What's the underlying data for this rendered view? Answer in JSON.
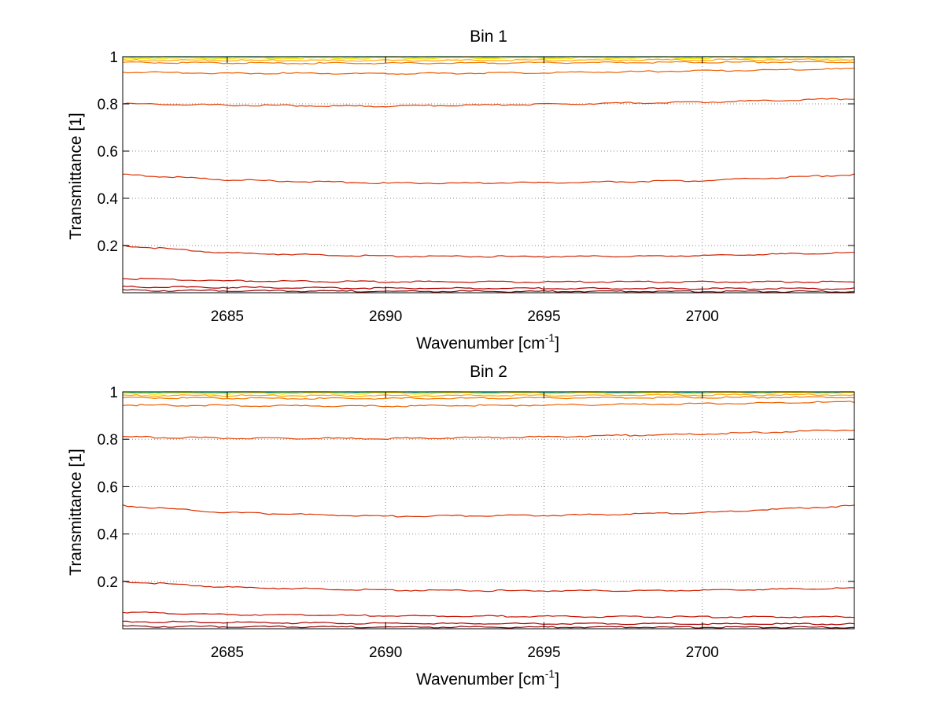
{
  "chart_data": [
    {
      "type": "line",
      "title": "Bin 1",
      "xlabel": "Wavenumber [cm",
      "xlabel_sup": "-1",
      "xlabel_suffix": "]",
      "ylabel": "Transmittance [1]",
      "xlim": [
        2681.7,
        2704.8
      ],
      "ylim": [
        0,
        1
      ],
      "xticks": [
        2685,
        2690,
        2695,
        2700
      ],
      "xtick_labels": [
        "2685",
        "2690",
        "2695",
        "2700"
      ],
      "yticks": [
        0.2,
        0.4,
        0.6,
        0.8,
        1
      ],
      "ytick_labels": [
        "0.2",
        "0.4",
        "0.6",
        "0.8",
        "1"
      ],
      "grid": true,
      "series": [
        {
          "name": "s1",
          "color": "#00c8ff",
          "x": [
            2681.7,
            2688,
            2695,
            2704.8
          ],
          "y": [
            1.0,
            1.0,
            1.0,
            1.0
          ]
        },
        {
          "name": "s2",
          "color": "#80ff80",
          "x": [
            2681.7,
            2688,
            2695,
            2704.8
          ],
          "y": [
            0.997,
            0.997,
            0.997,
            0.997
          ]
        },
        {
          "name": "s3",
          "color": "#ffe000",
          "x": [
            2681.7,
            2688,
            2695,
            2704.8
          ],
          "y": [
            0.993,
            0.993,
            0.994,
            0.995
          ]
        },
        {
          "name": "s4",
          "color": "#ffa500",
          "x": [
            2681.7,
            2688,
            2695,
            2704.8
          ],
          "y": [
            0.985,
            0.984,
            0.985,
            0.988
          ]
        },
        {
          "name": "s5",
          "color": "#f07800",
          "x": [
            2681.7,
            2688,
            2695,
            2704.8
          ],
          "y": [
            0.975,
            0.972,
            0.974,
            0.978
          ]
        },
        {
          "name": "s6",
          "color": "#ee6000",
          "x": [
            2681.7,
            2685,
            2690,
            2695,
            2700,
            2704.8
          ],
          "y": [
            0.935,
            0.93,
            0.928,
            0.932,
            0.94,
            0.948
          ]
        },
        {
          "name": "s7",
          "color": "#e54000",
          "x": [
            2681.7,
            2685,
            2690,
            2695,
            2700,
            2704.8
          ],
          "y": [
            0.8,
            0.795,
            0.79,
            0.798,
            0.808,
            0.822
          ]
        },
        {
          "name": "s8",
          "color": "#dd3000",
          "x": [
            2681.7,
            2685,
            2690,
            2695,
            2700,
            2704.8
          ],
          "y": [
            0.5,
            0.478,
            0.464,
            0.466,
            0.475,
            0.5
          ]
        },
        {
          "name": "s9",
          "color": "#d02000",
          "x": [
            2681.7,
            2685,
            2690,
            2695,
            2700,
            2704.8
          ],
          "y": [
            0.2,
            0.168,
            0.155,
            0.153,
            0.157,
            0.17
          ]
        },
        {
          "name": "s10",
          "color": "#c81000",
          "x": [
            2681.7,
            2685,
            2690,
            2695,
            2700,
            2704.8
          ],
          "y": [
            0.06,
            0.05,
            0.047,
            0.046,
            0.046,
            0.046
          ]
        },
        {
          "name": "s11",
          "color": "#b00000",
          "x": [
            2681.7,
            2690,
            2704.8
          ],
          "y": [
            0.025,
            0.019,
            0.017
          ]
        },
        {
          "name": "s12",
          "color": "#900000",
          "x": [
            2681.7,
            2690,
            2704.8
          ],
          "y": [
            0.01,
            0.006,
            0.005
          ]
        }
      ]
    },
    {
      "type": "line",
      "title": "Bin 2",
      "xlabel": "Wavenumber [cm",
      "xlabel_sup": "-1",
      "xlabel_suffix": "]",
      "ylabel": "Transmittance [1]",
      "xlim": [
        2681.7,
        2704.8
      ],
      "ylim": [
        0,
        1
      ],
      "xticks": [
        2685,
        2690,
        2695,
        2700
      ],
      "xtick_labels": [
        "2685",
        "2690",
        "2695",
        "2700"
      ],
      "yticks": [
        0.2,
        0.4,
        0.6,
        0.8,
        1
      ],
      "ytick_labels": [
        "0.2",
        "0.4",
        "0.6",
        "0.8",
        "1"
      ],
      "grid": true,
      "series": [
        {
          "name": "s1",
          "color": "#00c8ff",
          "x": [
            2681.7,
            2688,
            2695,
            2704.8
          ],
          "y": [
            1.0,
            1.0,
            1.0,
            1.0
          ]
        },
        {
          "name": "s2",
          "color": "#80ff80",
          "x": [
            2681.7,
            2688,
            2695,
            2704.8
          ],
          "y": [
            0.997,
            0.997,
            0.997,
            0.997
          ]
        },
        {
          "name": "s3",
          "color": "#ffe000",
          "x": [
            2681.7,
            2688,
            2695,
            2704.8
          ],
          "y": [
            0.993,
            0.993,
            0.994,
            0.995
          ]
        },
        {
          "name": "s4",
          "color": "#ffa500",
          "x": [
            2681.7,
            2688,
            2695,
            2704.8
          ],
          "y": [
            0.985,
            0.984,
            0.985,
            0.988
          ]
        },
        {
          "name": "s5",
          "color": "#f07800",
          "x": [
            2681.7,
            2688,
            2695,
            2704.8
          ],
          "y": [
            0.975,
            0.972,
            0.974,
            0.978
          ]
        },
        {
          "name": "s6",
          "color": "#ee6000",
          "x": [
            2681.7,
            2685,
            2690,
            2695,
            2700,
            2704.8
          ],
          "y": [
            0.945,
            0.942,
            0.94,
            0.944,
            0.95,
            0.958
          ]
        },
        {
          "name": "s7",
          "color": "#e54000",
          "x": [
            2681.7,
            2685,
            2690,
            2695,
            2700,
            2704.8
          ],
          "y": [
            0.81,
            0.805,
            0.803,
            0.81,
            0.822,
            0.84
          ]
        },
        {
          "name": "s8",
          "color": "#dd3000",
          "x": [
            2681.7,
            2685,
            2690,
            2695,
            2700,
            2704.8
          ],
          "y": [
            0.52,
            0.49,
            0.475,
            0.478,
            0.49,
            0.52
          ]
        },
        {
          "name": "s9",
          "color": "#d02000",
          "x": [
            2681.7,
            2685,
            2690,
            2695,
            2700,
            2704.8
          ],
          "y": [
            0.2,
            0.175,
            0.163,
            0.16,
            0.162,
            0.172
          ]
        },
        {
          "name": "s10",
          "color": "#c81000",
          "x": [
            2681.7,
            2685,
            2690,
            2695,
            2700,
            2704.8
          ],
          "y": [
            0.07,
            0.06,
            0.055,
            0.052,
            0.05,
            0.05
          ]
        },
        {
          "name": "s11",
          "color": "#b00000",
          "x": [
            2681.7,
            2690,
            2704.8
          ],
          "y": [
            0.03,
            0.022,
            0.02
          ]
        },
        {
          "name": "s12",
          "color": "#900000",
          "x": [
            2681.7,
            2690,
            2704.8
          ],
          "y": [
            0.01,
            0.007,
            0.006
          ]
        }
      ]
    }
  ]
}
